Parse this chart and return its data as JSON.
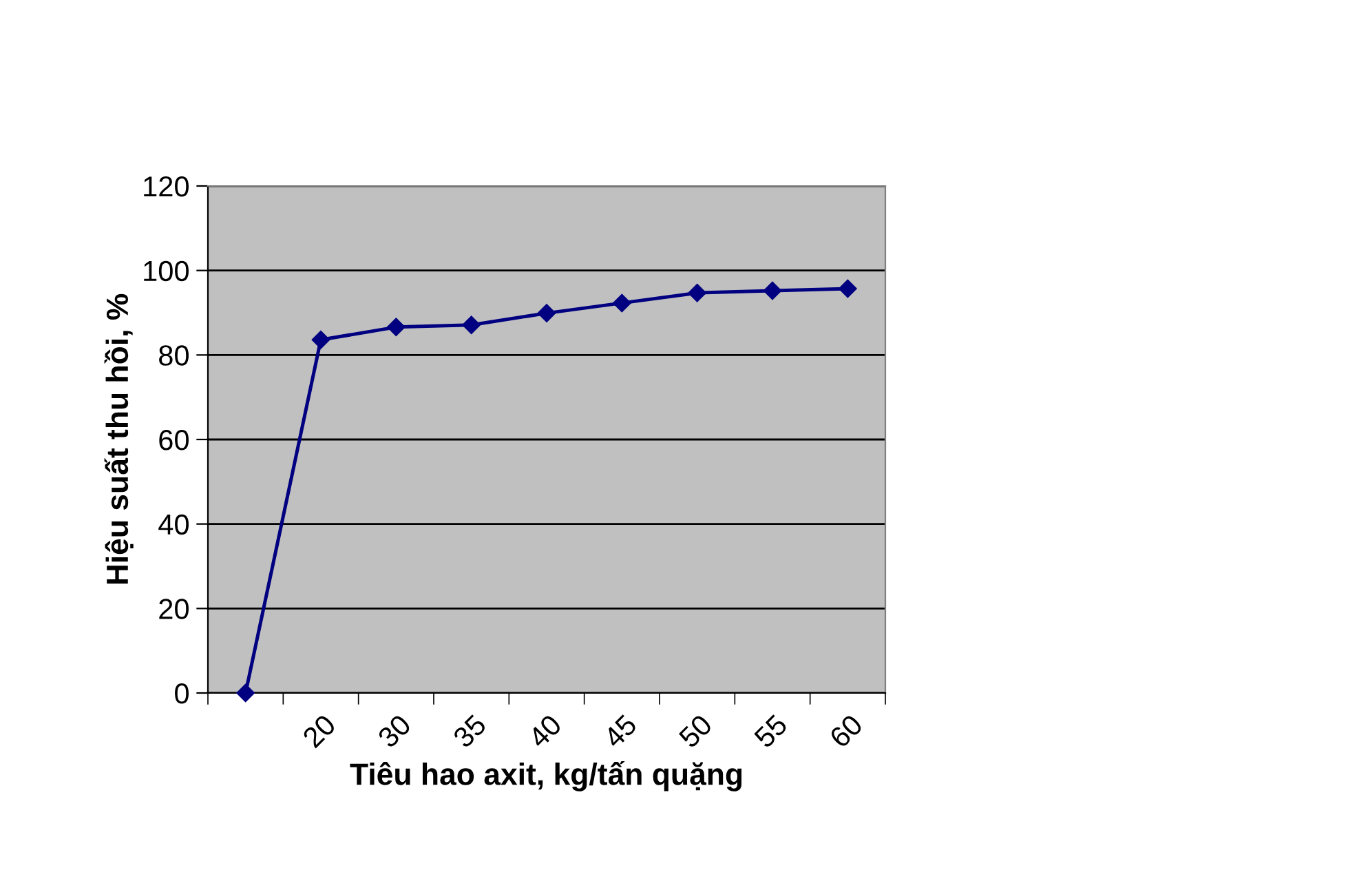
{
  "chart_data": {
    "type": "line",
    "xlabel": "Tiêu hao axit, kg/tấn quặng",
    "ylabel": "Hiệu suất thu hồi, %",
    "categories": [
      null,
      "20",
      "30",
      "35",
      "40",
      "45",
      "50",
      "55",
      "60"
    ],
    "series": [
      {
        "color": "#000080",
        "values": [
          0,
          83.6,
          86.6,
          87.1,
          89.9,
          92.3,
          94.7,
          95.2,
          95.7
        ]
      }
    ],
    "ylim": [
      0,
      120
    ],
    "yticks": [
      0,
      20,
      40,
      60,
      80,
      100,
      120
    ],
    "grid": "y",
    "marker": "diamond",
    "line_style": "solid",
    "legend": false
  }
}
